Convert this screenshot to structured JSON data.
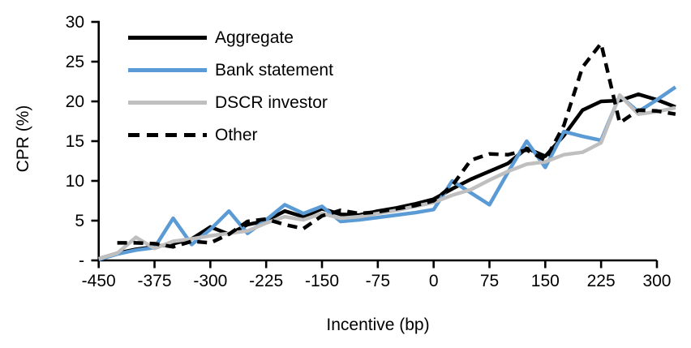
{
  "chart_data": {
    "type": "line",
    "x_label": "Incentive (bp)",
    "y_label": "CPR (%)",
    "grid": false,
    "legend_position": "top-left-inside",
    "x_range": [
      -450,
      300
    ],
    "y_range": [
      0,
      30
    ],
    "x_ticks": [
      {
        "value": -450,
        "label": "-450"
      },
      {
        "value": -375,
        "label": "-375"
      },
      {
        "value": -300,
        "label": "-300"
      },
      {
        "value": -225,
        "label": "-225"
      },
      {
        "value": -150,
        "label": "-150"
      },
      {
        "value": -75,
        "label": "-75"
      },
      {
        "value": 0,
        "label": "0"
      },
      {
        "value": 75,
        "label": "75"
      },
      {
        "value": 150,
        "label": "150"
      },
      {
        "value": 225,
        "label": "225"
      },
      {
        "value": 300,
        "label": "300"
      }
    ],
    "y_ticks": [
      {
        "value": 30,
        "label": "30"
      },
      {
        "value": 25,
        "label": "25"
      },
      {
        "value": 20,
        "label": "20"
      },
      {
        "value": 15,
        "label": "15"
      },
      {
        "value": 10,
        "label": "10"
      },
      {
        "value": 5,
        "label": "5"
      },
      {
        "value": 0,
        "label": "-"
      }
    ],
    "x": [
      -450,
      -425,
      -400,
      -375,
      -350,
      -325,
      -300,
      -275,
      -250,
      -225,
      -200,
      -175,
      -150,
      -125,
      -100,
      -75,
      -50,
      -25,
      0,
      25,
      50,
      75,
      100,
      125,
      150,
      175,
      200,
      225,
      250,
      275,
      300,
      325
    ],
    "series": [
      {
        "name": "Aggregate",
        "color": "#000000",
        "dash": "solid",
        "values": [
          0.2,
          0.9,
          1.4,
          1.7,
          2.1,
          2.7,
          4.2,
          3.3,
          4.5,
          5.0,
          6.2,
          5.5,
          6.5,
          5.8,
          5.7,
          6.2,
          6.6,
          7.1,
          7.7,
          9.0,
          10.2,
          11.2,
          12.2,
          14.1,
          13.1,
          15.7,
          18.9,
          20.0,
          20.1,
          20.9,
          20.2,
          19.3
        ]
      },
      {
        "name": "Bank statement",
        "color": "#5B9BD5",
        "dash": "solid",
        "values": [
          0.1,
          0.8,
          1.3,
          1.6,
          5.3,
          2.0,
          3.9,
          6.2,
          3.4,
          5.1,
          7.0,
          5.9,
          6.8,
          4.9,
          5.1,
          5.4,
          5.7,
          6.0,
          6.4,
          10.0,
          8.5,
          7.0,
          11.1,
          15.0,
          11.7,
          16.2,
          15.6,
          15.1,
          20.7,
          18.7,
          20.2,
          21.8
        ]
      },
      {
        "name": "DSCR investor",
        "color": "#BFBFBF",
        "dash": "solid",
        "values": [
          0.2,
          0.9,
          2.9,
          1.5,
          2.4,
          2.7,
          3.1,
          3.4,
          3.7,
          4.7,
          5.5,
          5.1,
          5.9,
          5.3,
          5.5,
          5.9,
          6.3,
          6.8,
          7.3,
          8.2,
          8.9,
          10.1,
          11.2,
          12.1,
          12.4,
          13.3,
          13.6,
          14.8,
          20.8,
          18.4,
          18.7,
          19.2
        ]
      },
      {
        "name": "Other",
        "color": "#000000",
        "dash": "dashed",
        "values": [
          null,
          2.2,
          2.2,
          2.1,
          1.7,
          2.4,
          2.2,
          3.3,
          4.9,
          5.2,
          4.5,
          4.0,
          5.6,
          6.3,
          5.9,
          6.1,
          6.5,
          6.9,
          7.5,
          9.4,
          12.6,
          13.4,
          13.3,
          13.9,
          12.6,
          17.0,
          24.3,
          27.3,
          17.3,
          18.9,
          18.8,
          18.4
        ]
      }
    ]
  }
}
